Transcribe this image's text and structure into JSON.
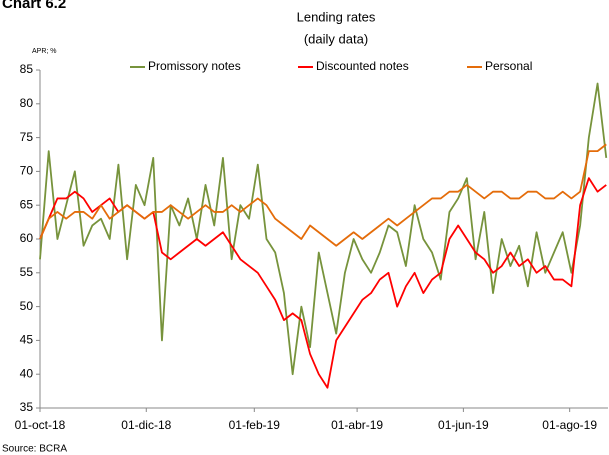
{
  "chart_data": {
    "type": "line",
    "heading": "Chart 6.2",
    "title": "Lending rates",
    "subtitle": "(daily data)",
    "y_label": "APR; %",
    "source": "Source: BCRA",
    "x": [
      "2018-10-01",
      "2018-10-06",
      "2018-10-11",
      "2018-10-16",
      "2018-10-21",
      "2018-10-26",
      "2018-10-31",
      "2018-11-05",
      "2018-11-10",
      "2018-11-15",
      "2018-11-20",
      "2018-11-25",
      "2018-11-30",
      "2018-12-05",
      "2018-12-10",
      "2018-12-15",
      "2018-12-20",
      "2018-12-25",
      "2018-12-30",
      "2019-01-04",
      "2019-01-09",
      "2019-01-14",
      "2019-01-19",
      "2019-01-24",
      "2019-01-29",
      "2019-02-03",
      "2019-02-08",
      "2019-02-13",
      "2019-02-18",
      "2019-02-23",
      "2019-02-28",
      "2019-03-05",
      "2019-03-10",
      "2019-03-15",
      "2019-03-20",
      "2019-03-25",
      "2019-03-30",
      "2019-04-04",
      "2019-04-09",
      "2019-04-14",
      "2019-04-19",
      "2019-04-24",
      "2019-04-29",
      "2019-05-04",
      "2019-05-09",
      "2019-05-14",
      "2019-05-19",
      "2019-05-24",
      "2019-05-29",
      "2019-06-03",
      "2019-06-08",
      "2019-06-13",
      "2019-06-18",
      "2019-06-23",
      "2019-06-28",
      "2019-07-03",
      "2019-07-08",
      "2019-07-13",
      "2019-07-18",
      "2019-07-23",
      "2019-07-28",
      "2019-08-02",
      "2019-08-07",
      "2019-08-12",
      "2019-08-17",
      "2019-08-22"
    ],
    "series": [
      {
        "name": "Promissory notes",
        "color": "#77933c",
        "values": [
          57,
          73,
          60,
          65,
          70,
          59,
          62,
          63,
          60,
          71,
          57,
          68,
          65,
          72,
          45,
          65,
          62,
          66,
          60,
          68,
          62,
          72,
          57,
          65,
          63,
          71,
          60,
          58,
          52,
          40,
          50,
          44,
          58,
          52,
          46,
          55,
          60,
          57,
          55,
          58,
          62,
          61,
          56,
          65,
          60,
          58,
          54,
          64,
          66,
          69,
          57,
          64,
          52,
          60,
          56,
          59,
          53,
          61,
          55,
          58,
          61,
          55,
          62,
          75,
          83,
          72
        ]
      },
      {
        "name": "Discounted notes",
        "color": "#ff0000",
        "values": [
          60,
          63,
          66,
          66,
          67,
          66,
          64,
          65,
          66,
          64,
          65,
          64,
          63,
          64,
          58,
          57,
          58,
          59,
          60,
          59,
          60,
          61,
          59,
          57,
          56,
          55,
          53,
          51,
          48,
          49,
          48,
          43,
          40,
          38,
          45,
          47,
          49,
          51,
          52,
          54,
          55,
          50,
          53,
          55,
          52,
          54,
          55,
          60,
          62,
          60,
          58,
          57,
          55,
          56,
          58,
          56,
          57,
          55,
          56,
          54,
          54,
          53,
          65,
          69,
          67,
          68
        ]
      },
      {
        "name": "Personal",
        "color": "#e46c0a",
        "values": [
          60,
          63,
          64,
          63,
          64,
          64,
          63,
          65,
          63,
          64,
          65,
          64,
          63,
          64,
          64,
          65,
          64,
          63,
          64,
          65,
          64,
          64,
          65,
          64,
          65,
          66,
          65,
          63,
          62,
          61,
          60,
          62,
          61,
          60,
          59,
          60,
          61,
          60,
          61,
          62,
          63,
          62,
          63,
          64,
          65,
          66,
          66,
          67,
          67,
          68,
          67,
          66,
          67,
          67,
          66,
          66,
          67,
          67,
          66,
          66,
          67,
          66,
          67,
          73,
          73,
          74
        ]
      }
    ],
    "xlim": [
      "2018-10-01",
      "2019-08-23"
    ],
    "xticks": [
      {
        "value": "2018-10-01",
        "label": "01-oct-18"
      },
      {
        "value": "2018-12-01",
        "label": "01-dic-18"
      },
      {
        "value": "2019-02-01",
        "label": "01-feb-19"
      },
      {
        "value": "2019-04-01",
        "label": "01-abr-19"
      },
      {
        "value": "2019-06-01",
        "label": "01-jun-19"
      },
      {
        "value": "2019-08-01",
        "label": "01-ago-19"
      }
    ],
    "ylim": [
      35,
      85
    ],
    "yticks": [
      35,
      40,
      45,
      50,
      55,
      60,
      65,
      70,
      75,
      80,
      85
    ],
    "grid": false,
    "legend": "top"
  }
}
